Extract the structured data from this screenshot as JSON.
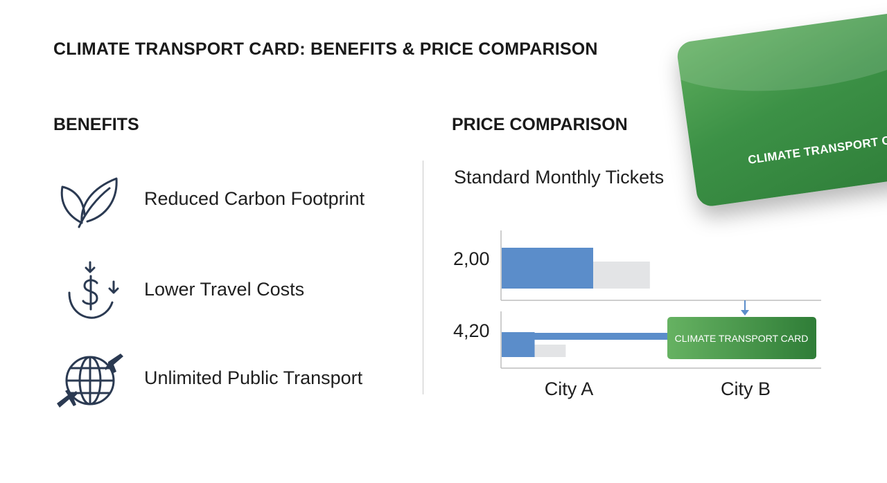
{
  "title": "CLIMATE TRANSPORT CARD: BENEFITS & PRICE COMPARISON",
  "benefits": {
    "heading": "BENEFITS",
    "items": [
      {
        "label": "Reduced Carbon Footprint",
        "icon": "leaf-icon"
      },
      {
        "label": "Lower Travel Costs",
        "icon": "dollar-down-icon"
      },
      {
        "label": "Unlimited Public Transport",
        "icon": "globe-planes-icon"
      }
    ]
  },
  "price": {
    "heading": "PRICE COMPARISON"
  },
  "card": {
    "label": "CLIMATE TRANSPORT CARD"
  },
  "colors": {
    "bar_blue": "#5b8dca",
    "bar_grey": "#e3e4e6",
    "card_green": "#3c9146",
    "icon_navy": "#2b3a52"
  },
  "chart_data": {
    "type": "bar",
    "title": "Standard Monthly Tickets",
    "categories": [
      "City A",
      "City B"
    ],
    "rows": [
      {
        "label": "2,00",
        "blue": 1.0,
        "grey": 0.62
      },
      {
        "label": "4,20",
        "blue": 0.36,
        "grey": 0.34
      }
    ],
    "highlight": {
      "label": "CLIMATE TRANSPORT CARD",
      "category": "City B"
    }
  }
}
